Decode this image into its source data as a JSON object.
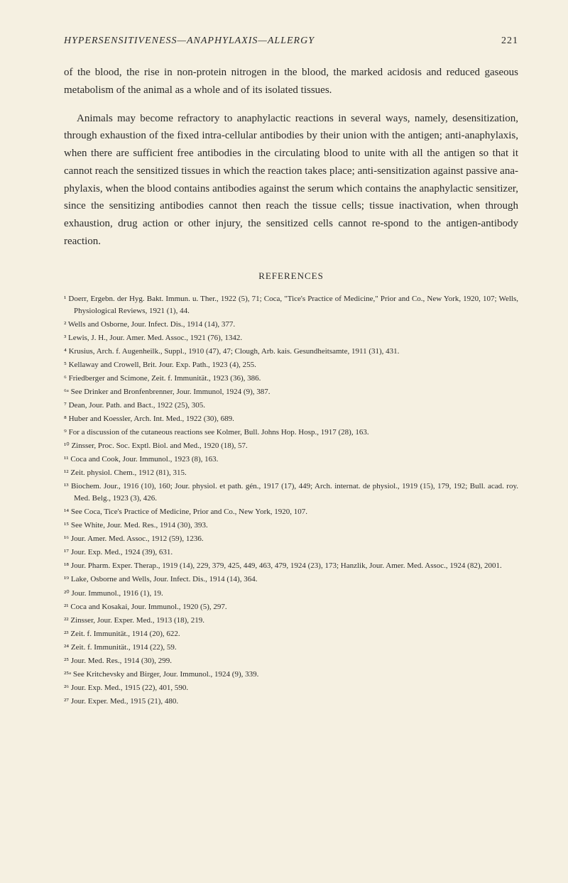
{
  "header": {
    "title_italic": "HYPERSENSITIVENESS—ANAPHYLAXIS—ALLERGY",
    "page_number": "221"
  },
  "paragraphs": [
    "of the blood, the rise in non-protein nitrogen in the blood, the marked acidosis and reduced gaseous metabolism of the animal as a whole and of its isolated tissues.",
    "Animals may become refractory to anaphylactic reactions in several ways, namely, desensitization, through exhaustion of the fixed intra-cellular antibodies by their union with the antigen; anti-anaphylaxis, when there are sufficient free antibodies in the circulating blood to unite with all the antigen so that it cannot reach the sensitized tissues in which the reaction takes place; anti-sensitization against passive ana-phylaxis, when the blood contains antibodies against the serum which contains the anaphylactic sensitizer, since the sensitizing antibodies cannot then reach the tissue cells; tissue inactivation, when through exhaustion, drug action or other injury, the sensitized cells cannot re-spond to the antigen-antibody reaction."
  ],
  "references_title": "REFERENCES",
  "references": [
    "¹ Doerr, Ergebn. der Hyg. Bakt. Immun. u. Ther., 1922 (5), 71; Coca, \"Tice's Practice of Medicine,\" Prior and Co., New York, 1920, 107; Wells, Physiological Reviews, 1921 (1), 44.",
    "² Wells and Osborne, Jour. Infect. Dis., 1914 (14), 377.",
    "³ Lewis, J. H., Jour. Amer. Med. Assoc., 1921 (76), 1342.",
    "⁴ Krusius, Arch. f. Augenheilk., Suppl., 1910 (47), 47; Clough, Arb. kais. Gesundheitsamte, 1911 (31), 431.",
    "⁵ Kellaway and Crowell, Brit. Jour. Exp. Path., 1923 (4), 255.",
    "⁶ Friedberger and Scimone, Zeit. f. Immunität., 1923 (36), 386.",
    "⁶ᵃ See Drinker and Bronfenbrenner, Jour. Immunol, 1924 (9), 387.",
    "⁷ Dean, Jour. Path. and Bact., 1922 (25), 305.",
    "⁸ Huber and Koessler, Arch. Int. Med., 1922 (30), 689.",
    "⁹ For a discussion of the cutaneous reactions see Kolmer, Bull. Johns Hop. Hosp., 1917 (28), 163.",
    "¹⁰ Zinsser, Proc. Soc. Exptl. Biol. and Med., 1920 (18), 57.",
    "¹¹ Coca and Cook, Jour. Immunol., 1923 (8), 163.",
    "¹² Zeit. physiol. Chem., 1912 (81), 315.",
    "¹³ Biochem. Jour., 1916 (10), 160; Jour. physiol. et path. gén., 1917 (17), 449; Arch. internat. de physiol., 1919 (15), 179, 192; Bull. acad. roy. Med. Belg., 1923 (3), 426.",
    "¹⁴ See Coca, Tice's Practice of Medicine, Prior and Co., New York, 1920, 107.",
    "¹⁵ See White, Jour. Med. Res., 1914 (30), 393.",
    "¹⁶ Jour. Amer. Med. Assoc., 1912 (59), 1236.",
    "¹⁷ Jour. Exp. Med., 1924 (39), 631.",
    "¹⁸ Jour. Pharm. Exper. Therap., 1919 (14), 229, 379, 425, 449, 463, 479, 1924 (23), 173; Hanzlik, Jour. Amer. Med. Assoc., 1924 (82), 2001.",
    "¹⁹ Lake, Osborne and Wells, Jour. Infect. Dis., 1914 (14), 364.",
    "²⁰ Jour. Immunol., 1916 (1), 19.",
    "²¹ Coca and Kosakai, Jour. Immunol., 1920 (5), 297.",
    "²² Zinsser, Jour. Exper. Med., 1913 (18), 219.",
    "²³ Zeit. f. Immunität., 1914 (20), 622.",
    "²⁴ Zeit. f. Immunität., 1914 (22), 59.",
    "²⁵ Jour. Med. Res., 1914 (30), 299.",
    "²⁵ᵃ See Kritchevsky and Birger, Jour. Immunol., 1924 (9), 339.",
    "²⁶ Jour. Exp. Med., 1915 (22), 401, 590.",
    "²⁷ Jour. Exper. Med., 1915 (21), 480."
  ]
}
